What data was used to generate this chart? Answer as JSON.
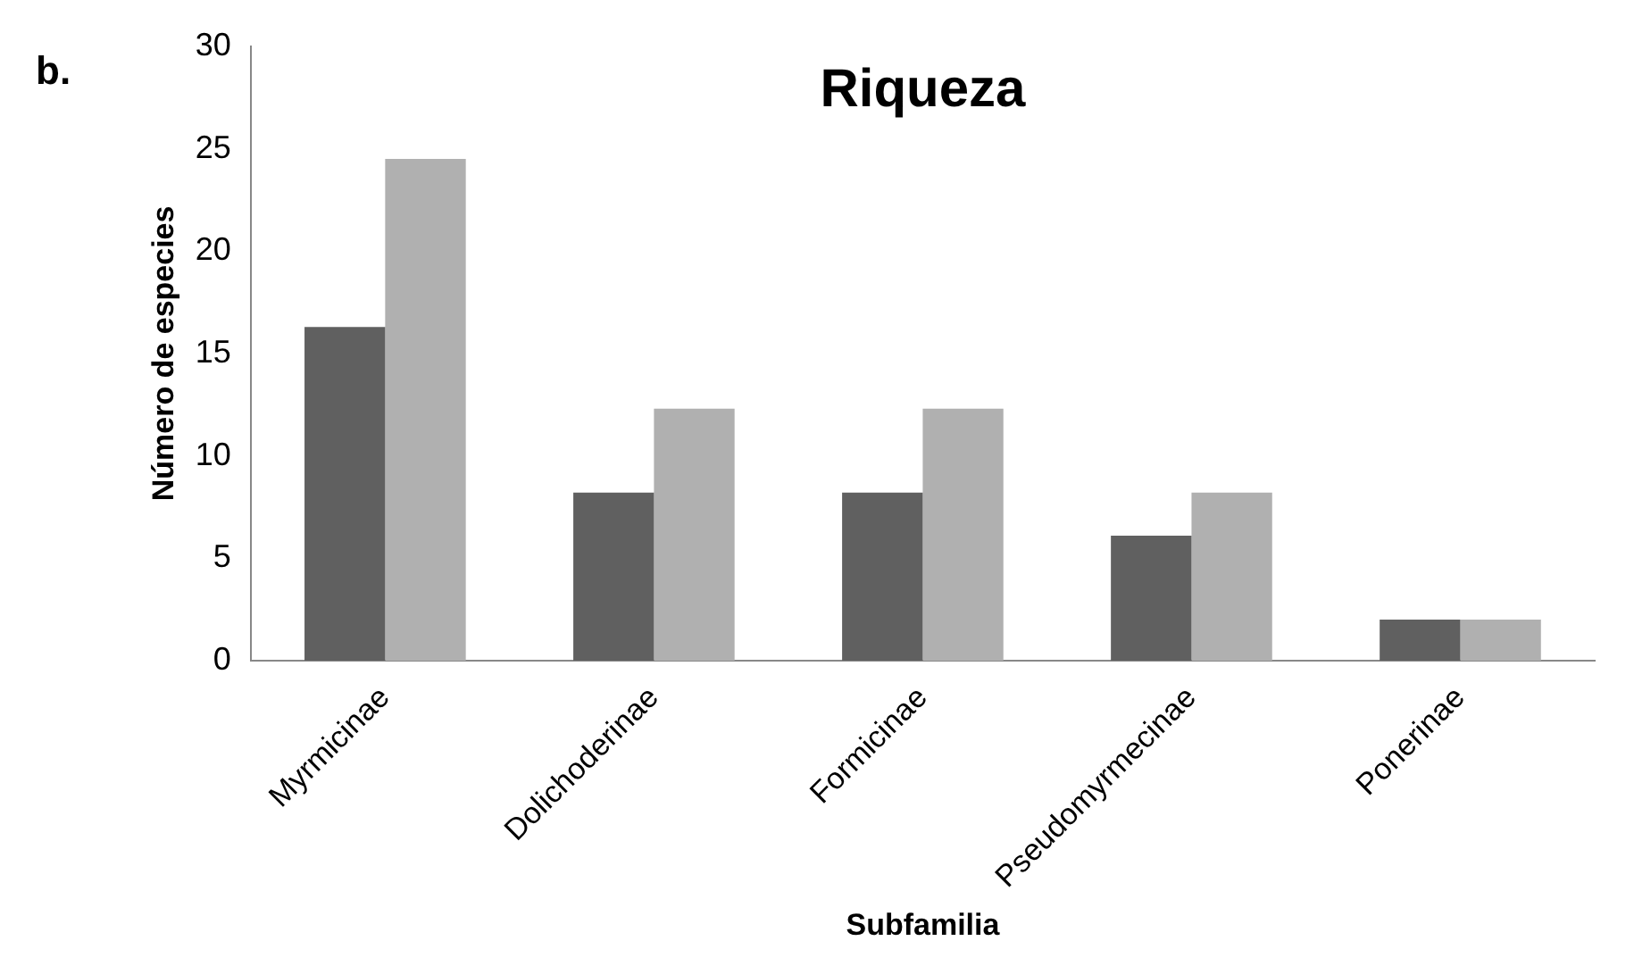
{
  "chart_data": {
    "type": "bar",
    "title": "Riqueza",
    "xlabel": "Subfamilia",
    "ylabel": "Número de especies",
    "annotations": [
      "b."
    ],
    "categories": [
      "Myrmicinae",
      "Dolichoderinae",
      "Formicinae",
      "Pseudomyrmecinae",
      "Ponerinae"
    ],
    "series": [
      {
        "color": "#606060",
        "values": [
          16.3,
          8.2,
          8.2,
          6.1,
          2
        ]
      },
      {
        "color": "#b0b0b0",
        "values": [
          24.5,
          12.3,
          12.3,
          8.2,
          2
        ]
      }
    ],
    "ylim": [
      0,
      30
    ],
    "yticks": [
      0,
      5,
      10,
      15,
      20,
      25,
      30
    ],
    "grid": false,
    "legend": false
  }
}
